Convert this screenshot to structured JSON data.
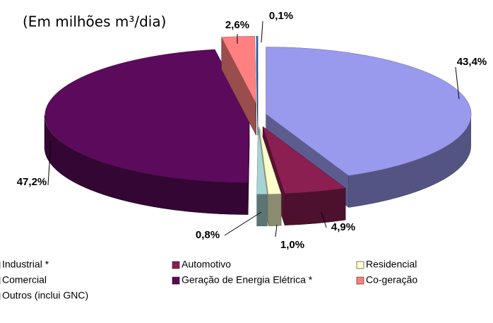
{
  "chart_data": {
    "type": "pie",
    "title": "(Em milhões m³/dia)",
    "categories": [
      "Industrial *",
      "Automotivo",
      "Residencial",
      "Comercial",
      "Geração de Energia Elétrica *",
      "Co-geração",
      "Outros (inclui GNC)"
    ],
    "values": [
      43.4,
      4.9,
      1.0,
      0.8,
      47.2,
      2.6,
      0.1
    ],
    "value_labels": [
      "43,4%",
      "4,9%",
      "1,0%",
      "0,8%",
      "47,2%",
      "2,6%",
      "0,1%"
    ],
    "colors": [
      "#9999ee",
      "#8c1f52",
      "#ffffcc",
      "#a6d4d4",
      "#5c0a5c",
      "#ff8080",
      "#2b6bc4"
    ]
  }
}
